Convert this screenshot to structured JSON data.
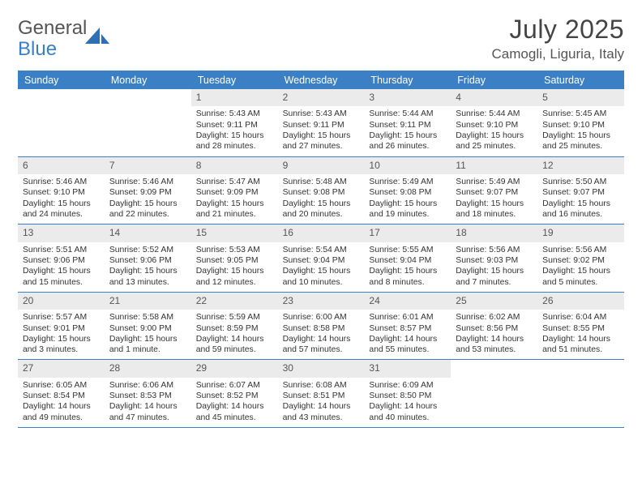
{
  "brand": {
    "part1": "General",
    "part2": "Blue"
  },
  "title": "July 2025",
  "location": "Camogli, Liguria, Italy",
  "theme": {
    "accent": "#3b7fc4",
    "header_text": "#ffffff",
    "cell_num_bg": "#ebebeb",
    "body_text": "#333333",
    "bg": "#ffffff"
  },
  "day_names": [
    "Sunday",
    "Monday",
    "Tuesday",
    "Wednesday",
    "Thursday",
    "Friday",
    "Saturday"
  ],
  "weeks": [
    [
      {
        "empty": true
      },
      {
        "empty": true
      },
      {
        "num": "1",
        "sunrise": "Sunrise: 5:43 AM",
        "sunset": "Sunset: 9:11 PM",
        "day1": "Daylight: 15 hours",
        "day2": "and 28 minutes."
      },
      {
        "num": "2",
        "sunrise": "Sunrise: 5:43 AM",
        "sunset": "Sunset: 9:11 PM",
        "day1": "Daylight: 15 hours",
        "day2": "and 27 minutes."
      },
      {
        "num": "3",
        "sunrise": "Sunrise: 5:44 AM",
        "sunset": "Sunset: 9:11 PM",
        "day1": "Daylight: 15 hours",
        "day2": "and 26 minutes."
      },
      {
        "num": "4",
        "sunrise": "Sunrise: 5:44 AM",
        "sunset": "Sunset: 9:10 PM",
        "day1": "Daylight: 15 hours",
        "day2": "and 25 minutes."
      },
      {
        "num": "5",
        "sunrise": "Sunrise: 5:45 AM",
        "sunset": "Sunset: 9:10 PM",
        "day1": "Daylight: 15 hours",
        "day2": "and 25 minutes."
      }
    ],
    [
      {
        "num": "6",
        "sunrise": "Sunrise: 5:46 AM",
        "sunset": "Sunset: 9:10 PM",
        "day1": "Daylight: 15 hours",
        "day2": "and 24 minutes."
      },
      {
        "num": "7",
        "sunrise": "Sunrise: 5:46 AM",
        "sunset": "Sunset: 9:09 PM",
        "day1": "Daylight: 15 hours",
        "day2": "and 22 minutes."
      },
      {
        "num": "8",
        "sunrise": "Sunrise: 5:47 AM",
        "sunset": "Sunset: 9:09 PM",
        "day1": "Daylight: 15 hours",
        "day2": "and 21 minutes."
      },
      {
        "num": "9",
        "sunrise": "Sunrise: 5:48 AM",
        "sunset": "Sunset: 9:08 PM",
        "day1": "Daylight: 15 hours",
        "day2": "and 20 minutes."
      },
      {
        "num": "10",
        "sunrise": "Sunrise: 5:49 AM",
        "sunset": "Sunset: 9:08 PM",
        "day1": "Daylight: 15 hours",
        "day2": "and 19 minutes."
      },
      {
        "num": "11",
        "sunrise": "Sunrise: 5:49 AM",
        "sunset": "Sunset: 9:07 PM",
        "day1": "Daylight: 15 hours",
        "day2": "and 18 minutes."
      },
      {
        "num": "12",
        "sunrise": "Sunrise: 5:50 AM",
        "sunset": "Sunset: 9:07 PM",
        "day1": "Daylight: 15 hours",
        "day2": "and 16 minutes."
      }
    ],
    [
      {
        "num": "13",
        "sunrise": "Sunrise: 5:51 AM",
        "sunset": "Sunset: 9:06 PM",
        "day1": "Daylight: 15 hours",
        "day2": "and 15 minutes."
      },
      {
        "num": "14",
        "sunrise": "Sunrise: 5:52 AM",
        "sunset": "Sunset: 9:06 PM",
        "day1": "Daylight: 15 hours",
        "day2": "and 13 minutes."
      },
      {
        "num": "15",
        "sunrise": "Sunrise: 5:53 AM",
        "sunset": "Sunset: 9:05 PM",
        "day1": "Daylight: 15 hours",
        "day2": "and 12 minutes."
      },
      {
        "num": "16",
        "sunrise": "Sunrise: 5:54 AM",
        "sunset": "Sunset: 9:04 PM",
        "day1": "Daylight: 15 hours",
        "day2": "and 10 minutes."
      },
      {
        "num": "17",
        "sunrise": "Sunrise: 5:55 AM",
        "sunset": "Sunset: 9:04 PM",
        "day1": "Daylight: 15 hours",
        "day2": "and 8 minutes."
      },
      {
        "num": "18",
        "sunrise": "Sunrise: 5:56 AM",
        "sunset": "Sunset: 9:03 PM",
        "day1": "Daylight: 15 hours",
        "day2": "and 7 minutes."
      },
      {
        "num": "19",
        "sunrise": "Sunrise: 5:56 AM",
        "sunset": "Sunset: 9:02 PM",
        "day1": "Daylight: 15 hours",
        "day2": "and 5 minutes."
      }
    ],
    [
      {
        "num": "20",
        "sunrise": "Sunrise: 5:57 AM",
        "sunset": "Sunset: 9:01 PM",
        "day1": "Daylight: 15 hours",
        "day2": "and 3 minutes."
      },
      {
        "num": "21",
        "sunrise": "Sunrise: 5:58 AM",
        "sunset": "Sunset: 9:00 PM",
        "day1": "Daylight: 15 hours",
        "day2": "and 1 minute."
      },
      {
        "num": "22",
        "sunrise": "Sunrise: 5:59 AM",
        "sunset": "Sunset: 8:59 PM",
        "day1": "Daylight: 14 hours",
        "day2": "and 59 minutes."
      },
      {
        "num": "23",
        "sunrise": "Sunrise: 6:00 AM",
        "sunset": "Sunset: 8:58 PM",
        "day1": "Daylight: 14 hours",
        "day2": "and 57 minutes."
      },
      {
        "num": "24",
        "sunrise": "Sunrise: 6:01 AM",
        "sunset": "Sunset: 8:57 PM",
        "day1": "Daylight: 14 hours",
        "day2": "and 55 minutes."
      },
      {
        "num": "25",
        "sunrise": "Sunrise: 6:02 AM",
        "sunset": "Sunset: 8:56 PM",
        "day1": "Daylight: 14 hours",
        "day2": "and 53 minutes."
      },
      {
        "num": "26",
        "sunrise": "Sunrise: 6:04 AM",
        "sunset": "Sunset: 8:55 PM",
        "day1": "Daylight: 14 hours",
        "day2": "and 51 minutes."
      }
    ],
    [
      {
        "num": "27",
        "sunrise": "Sunrise: 6:05 AM",
        "sunset": "Sunset: 8:54 PM",
        "day1": "Daylight: 14 hours",
        "day2": "and 49 minutes."
      },
      {
        "num": "28",
        "sunrise": "Sunrise: 6:06 AM",
        "sunset": "Sunset: 8:53 PM",
        "day1": "Daylight: 14 hours",
        "day2": "and 47 minutes."
      },
      {
        "num": "29",
        "sunrise": "Sunrise: 6:07 AM",
        "sunset": "Sunset: 8:52 PM",
        "day1": "Daylight: 14 hours",
        "day2": "and 45 minutes."
      },
      {
        "num": "30",
        "sunrise": "Sunrise: 6:08 AM",
        "sunset": "Sunset: 8:51 PM",
        "day1": "Daylight: 14 hours",
        "day2": "and 43 minutes."
      },
      {
        "num": "31",
        "sunrise": "Sunrise: 6:09 AM",
        "sunset": "Sunset: 8:50 PM",
        "day1": "Daylight: 14 hours",
        "day2": "and 40 minutes."
      },
      {
        "empty": true
      },
      {
        "empty": true
      }
    ]
  ]
}
